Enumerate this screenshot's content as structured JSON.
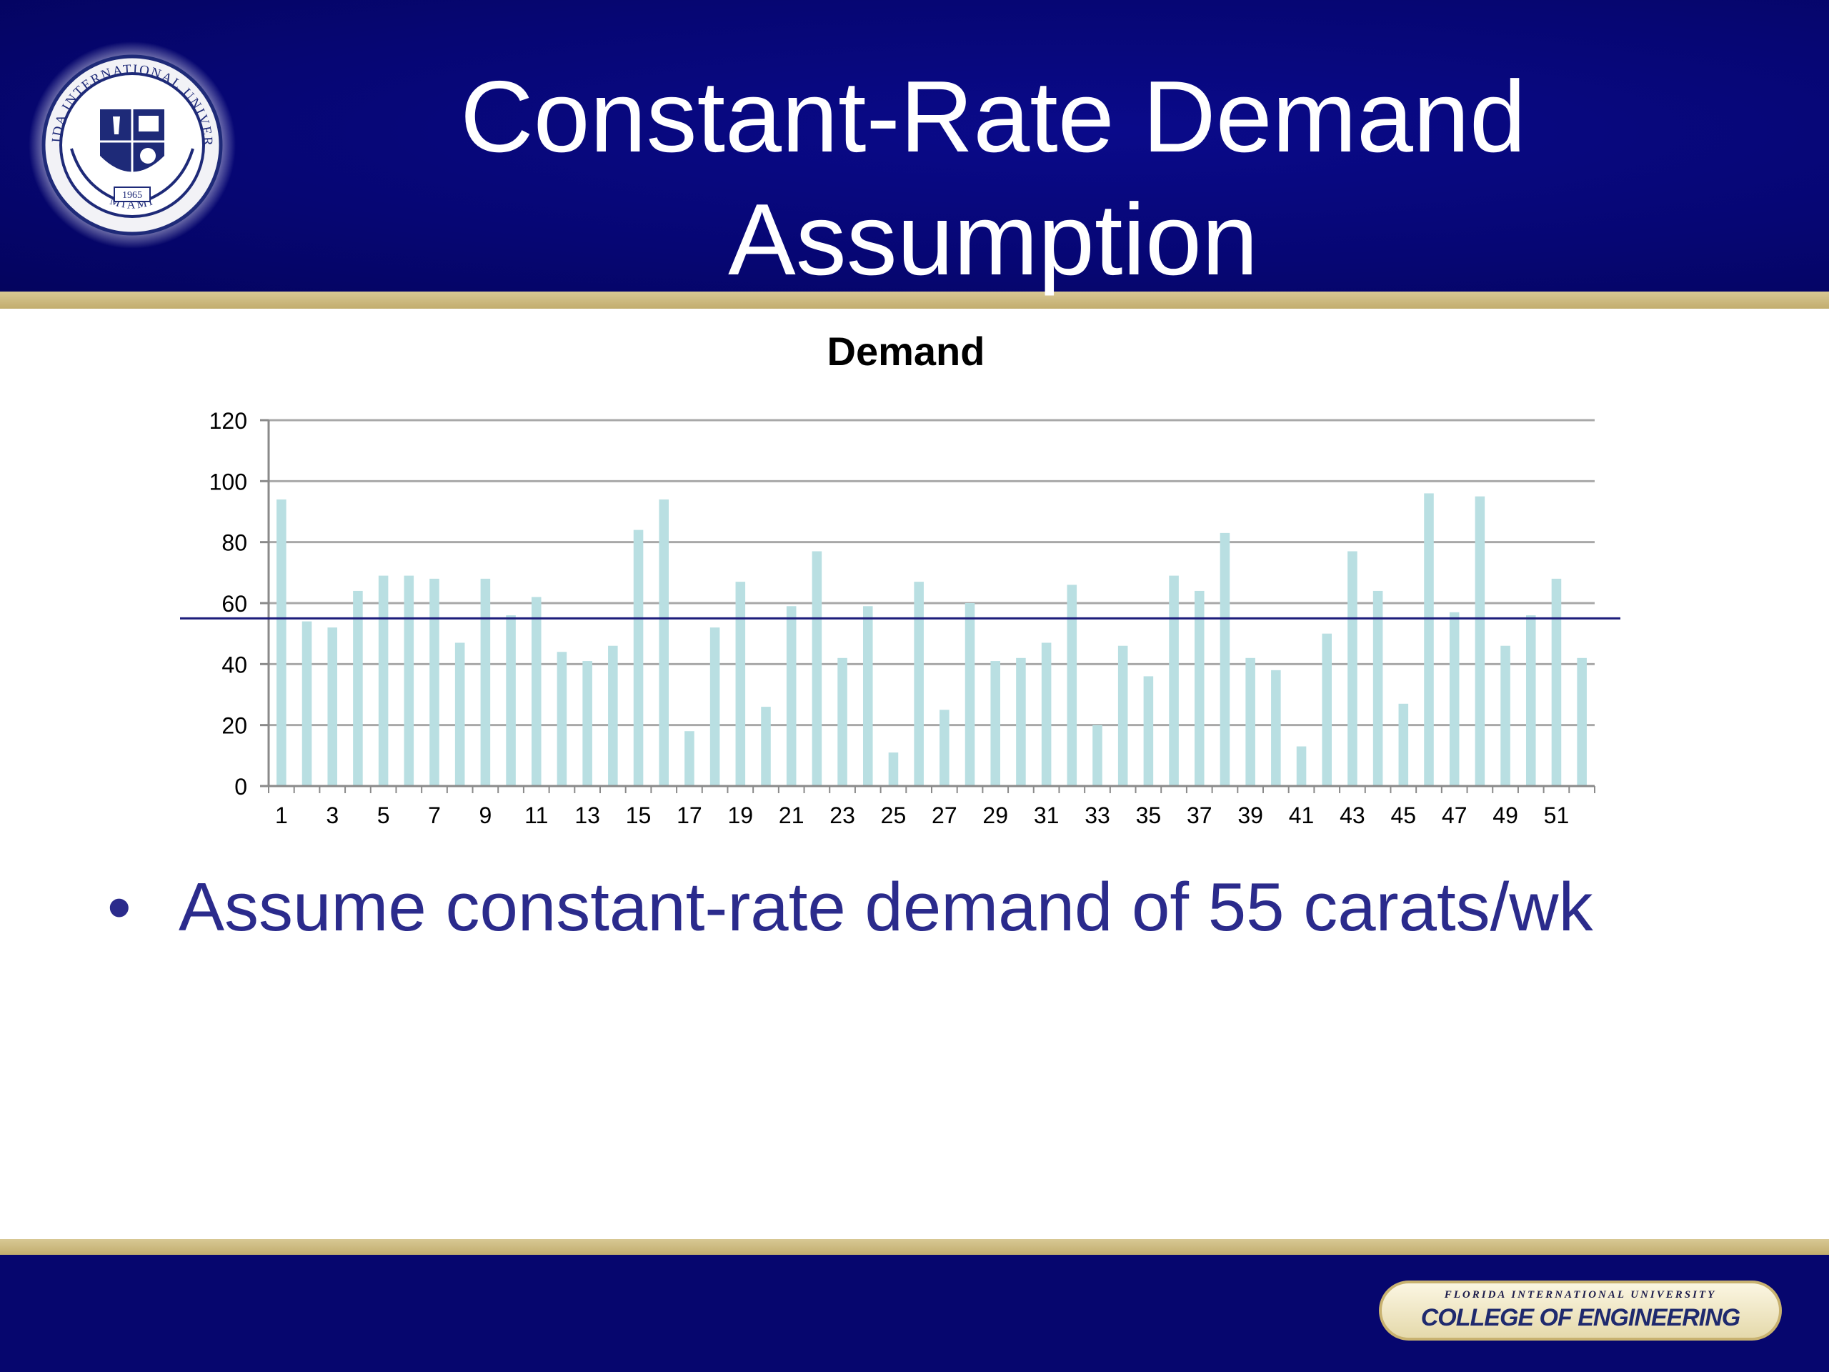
{
  "slide": {
    "title_line1": "Constant-Rate Demand",
    "title_line2": "Assumption",
    "bullet_char": "•",
    "bullet_text": "Assume constant-rate demand of 55 carats/wk"
  },
  "seal": {
    "ring_text": "FLORIDA INTERNATIONAL UNIVERSITY",
    "bottom_text": "MIAMI",
    "year": "1965"
  },
  "footer": {
    "badge_top": "FLORIDA INTERNATIONAL UNIVERSITY",
    "badge_main": "COLLEGE OF ENGINEERING"
  },
  "colors": {
    "header": "#060673",
    "gold": "#c8b77e",
    "bar": "#b9dfe2",
    "reference_line": "#1c1c7a",
    "bullet_text": "#2b2b8c"
  },
  "chart_data": {
    "type": "bar",
    "title": "Demand",
    "xlabel": "",
    "ylabel": "",
    "ylim": [
      0,
      120
    ],
    "yticks": [
      0,
      20,
      40,
      60,
      80,
      100,
      120
    ],
    "grid": true,
    "legend": "none",
    "categories": [
      1,
      2,
      3,
      4,
      5,
      6,
      7,
      8,
      9,
      10,
      11,
      12,
      13,
      14,
      15,
      16,
      17,
      18,
      19,
      20,
      21,
      22,
      23,
      24,
      25,
      26,
      27,
      28,
      29,
      30,
      31,
      32,
      33,
      34,
      35,
      36,
      37,
      38,
      39,
      40,
      41,
      42,
      43,
      44,
      45,
      46,
      47,
      48,
      49,
      50,
      51,
      52
    ],
    "xtick_labels": [
      "1",
      "3",
      "5",
      "7",
      "9",
      "11",
      "13",
      "15",
      "17",
      "19",
      "21",
      "23",
      "25",
      "27",
      "29",
      "31",
      "33",
      "35",
      "37",
      "39",
      "41",
      "43",
      "45",
      "47",
      "49",
      "51"
    ],
    "values": [
      94,
      54,
      52,
      64,
      69,
      69,
      68,
      47,
      68,
      56,
      62,
      44,
      41,
      46,
      84,
      94,
      18,
      52,
      67,
      26,
      59,
      77,
      42,
      59,
      11,
      67,
      25,
      60,
      41,
      42,
      47,
      66,
      20,
      46,
      36,
      69,
      64,
      83,
      42,
      38,
      13,
      50,
      77,
      64,
      27,
      96,
      57,
      95,
      46,
      56,
      68,
      42
    ],
    "reference_line": {
      "value": 55
    }
  }
}
